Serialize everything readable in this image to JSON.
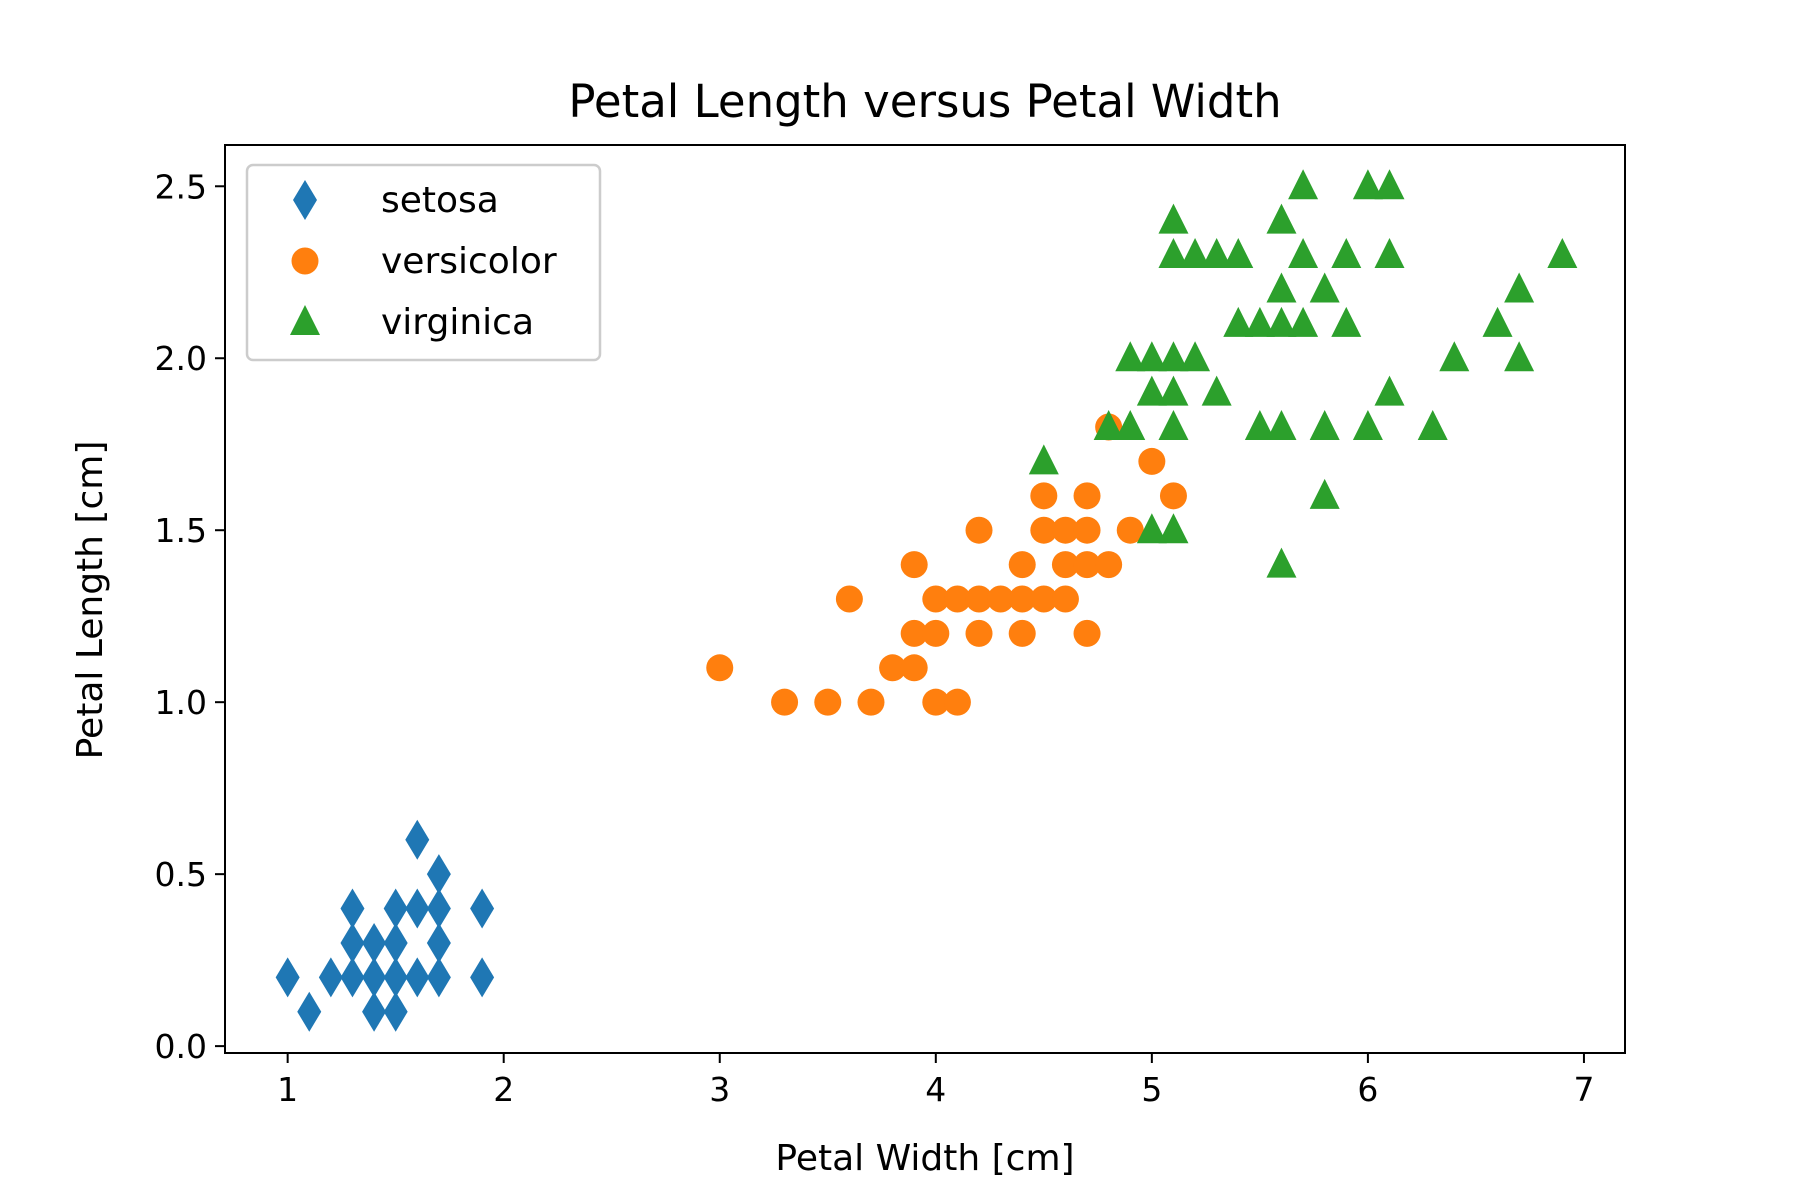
{
  "chart_data": {
    "type": "scatter",
    "title": "Petal Length versus Petal Width",
    "xlabel": "Petal Width [cm]",
    "ylabel": "Petal Length [cm]",
    "xlim": [
      0.71,
      7.19
    ],
    "ylim": [
      -0.02,
      2.62
    ],
    "xticks": [
      1,
      2,
      3,
      4,
      5,
      6,
      7
    ],
    "yticks": [
      0.0,
      0.5,
      1.0,
      1.5,
      2.0,
      2.5
    ],
    "xtick_labels": [
      "1",
      "2",
      "3",
      "4",
      "5",
      "6",
      "7"
    ],
    "ytick_labels": [
      "0.0",
      "0.5",
      "1.0",
      "1.5",
      "2.0",
      "2.5"
    ],
    "grid": false,
    "legend_position": "top-left",
    "series": [
      {
        "name": "setosa",
        "marker": "diamond",
        "color": "#1f77b4",
        "points": [
          [
            1.0,
            0.2
          ],
          [
            1.1,
            0.1
          ],
          [
            1.2,
            0.2
          ],
          [
            1.3,
            0.2
          ],
          [
            1.3,
            0.3
          ],
          [
            1.3,
            0.4
          ],
          [
            1.4,
            0.1
          ],
          [
            1.4,
            0.2
          ],
          [
            1.4,
            0.3
          ],
          [
            1.5,
            0.1
          ],
          [
            1.5,
            0.2
          ],
          [
            1.5,
            0.3
          ],
          [
            1.5,
            0.4
          ],
          [
            1.6,
            0.2
          ],
          [
            1.6,
            0.4
          ],
          [
            1.6,
            0.6
          ],
          [
            1.7,
            0.2
          ],
          [
            1.7,
            0.3
          ],
          [
            1.7,
            0.4
          ],
          [
            1.7,
            0.5
          ],
          [
            1.9,
            0.2
          ],
          [
            1.9,
            0.4
          ]
        ]
      },
      {
        "name": "versicolor",
        "marker": "circle",
        "color": "#ff7f0e",
        "points": [
          [
            3.0,
            1.1
          ],
          [
            3.3,
            1.0
          ],
          [
            3.5,
            1.0
          ],
          [
            3.6,
            1.3
          ],
          [
            3.7,
            1.0
          ],
          [
            3.8,
            1.1
          ],
          [
            3.9,
            1.1
          ],
          [
            3.9,
            1.2
          ],
          [
            3.9,
            1.4
          ],
          [
            4.0,
            1.0
          ],
          [
            4.0,
            1.2
          ],
          [
            4.0,
            1.3
          ],
          [
            4.1,
            1.0
          ],
          [
            4.1,
            1.3
          ],
          [
            4.2,
            1.2
          ],
          [
            4.2,
            1.3
          ],
          [
            4.2,
            1.5
          ],
          [
            4.3,
            1.3
          ],
          [
            4.4,
            1.2
          ],
          [
            4.4,
            1.3
          ],
          [
            4.4,
            1.4
          ],
          [
            4.5,
            1.3
          ],
          [
            4.5,
            1.5
          ],
          [
            4.5,
            1.6
          ],
          [
            4.6,
            1.3
          ],
          [
            4.6,
            1.4
          ],
          [
            4.6,
            1.5
          ],
          [
            4.7,
            1.2
          ],
          [
            4.7,
            1.4
          ],
          [
            4.7,
            1.5
          ],
          [
            4.7,
            1.6
          ],
          [
            4.8,
            1.4
          ],
          [
            4.8,
            1.8
          ],
          [
            4.9,
            1.5
          ],
          [
            5.0,
            1.7
          ],
          [
            5.1,
            1.6
          ]
        ]
      },
      {
        "name": "virginica",
        "marker": "triangle",
        "color": "#2ca02c",
        "points": [
          [
            4.5,
            1.7
          ],
          [
            4.8,
            1.8
          ],
          [
            4.9,
            1.8
          ],
          [
            4.9,
            2.0
          ],
          [
            5.0,
            1.5
          ],
          [
            5.0,
            1.9
          ],
          [
            5.0,
            2.0
          ],
          [
            5.1,
            1.5
          ],
          [
            5.1,
            1.8
          ],
          [
            5.1,
            1.9
          ],
          [
            5.1,
            2.0
          ],
          [
            5.1,
            2.3
          ],
          [
            5.1,
            2.4
          ],
          [
            5.2,
            2.0
          ],
          [
            5.2,
            2.3
          ],
          [
            5.3,
            1.9
          ],
          [
            5.3,
            2.3
          ],
          [
            5.4,
            2.1
          ],
          [
            5.4,
            2.3
          ],
          [
            5.5,
            1.8
          ],
          [
            5.5,
            2.1
          ],
          [
            5.6,
            1.4
          ],
          [
            5.6,
            1.8
          ],
          [
            5.6,
            2.1
          ],
          [
            5.6,
            2.2
          ],
          [
            5.6,
            2.4
          ],
          [
            5.7,
            2.1
          ],
          [
            5.7,
            2.3
          ],
          [
            5.7,
            2.5
          ],
          [
            5.8,
            1.6
          ],
          [
            5.8,
            1.8
          ],
          [
            5.8,
            2.2
          ],
          [
            5.9,
            2.1
          ],
          [
            5.9,
            2.3
          ],
          [
            6.0,
            1.8
          ],
          [
            6.0,
            2.5
          ],
          [
            6.1,
            1.9
          ],
          [
            6.1,
            2.3
          ],
          [
            6.1,
            2.5
          ],
          [
            6.3,
            1.8
          ],
          [
            6.4,
            2.0
          ],
          [
            6.6,
            2.1
          ],
          [
            6.7,
            2.0
          ],
          [
            6.7,
            2.2
          ],
          [
            6.9,
            2.3
          ]
        ]
      }
    ]
  }
}
